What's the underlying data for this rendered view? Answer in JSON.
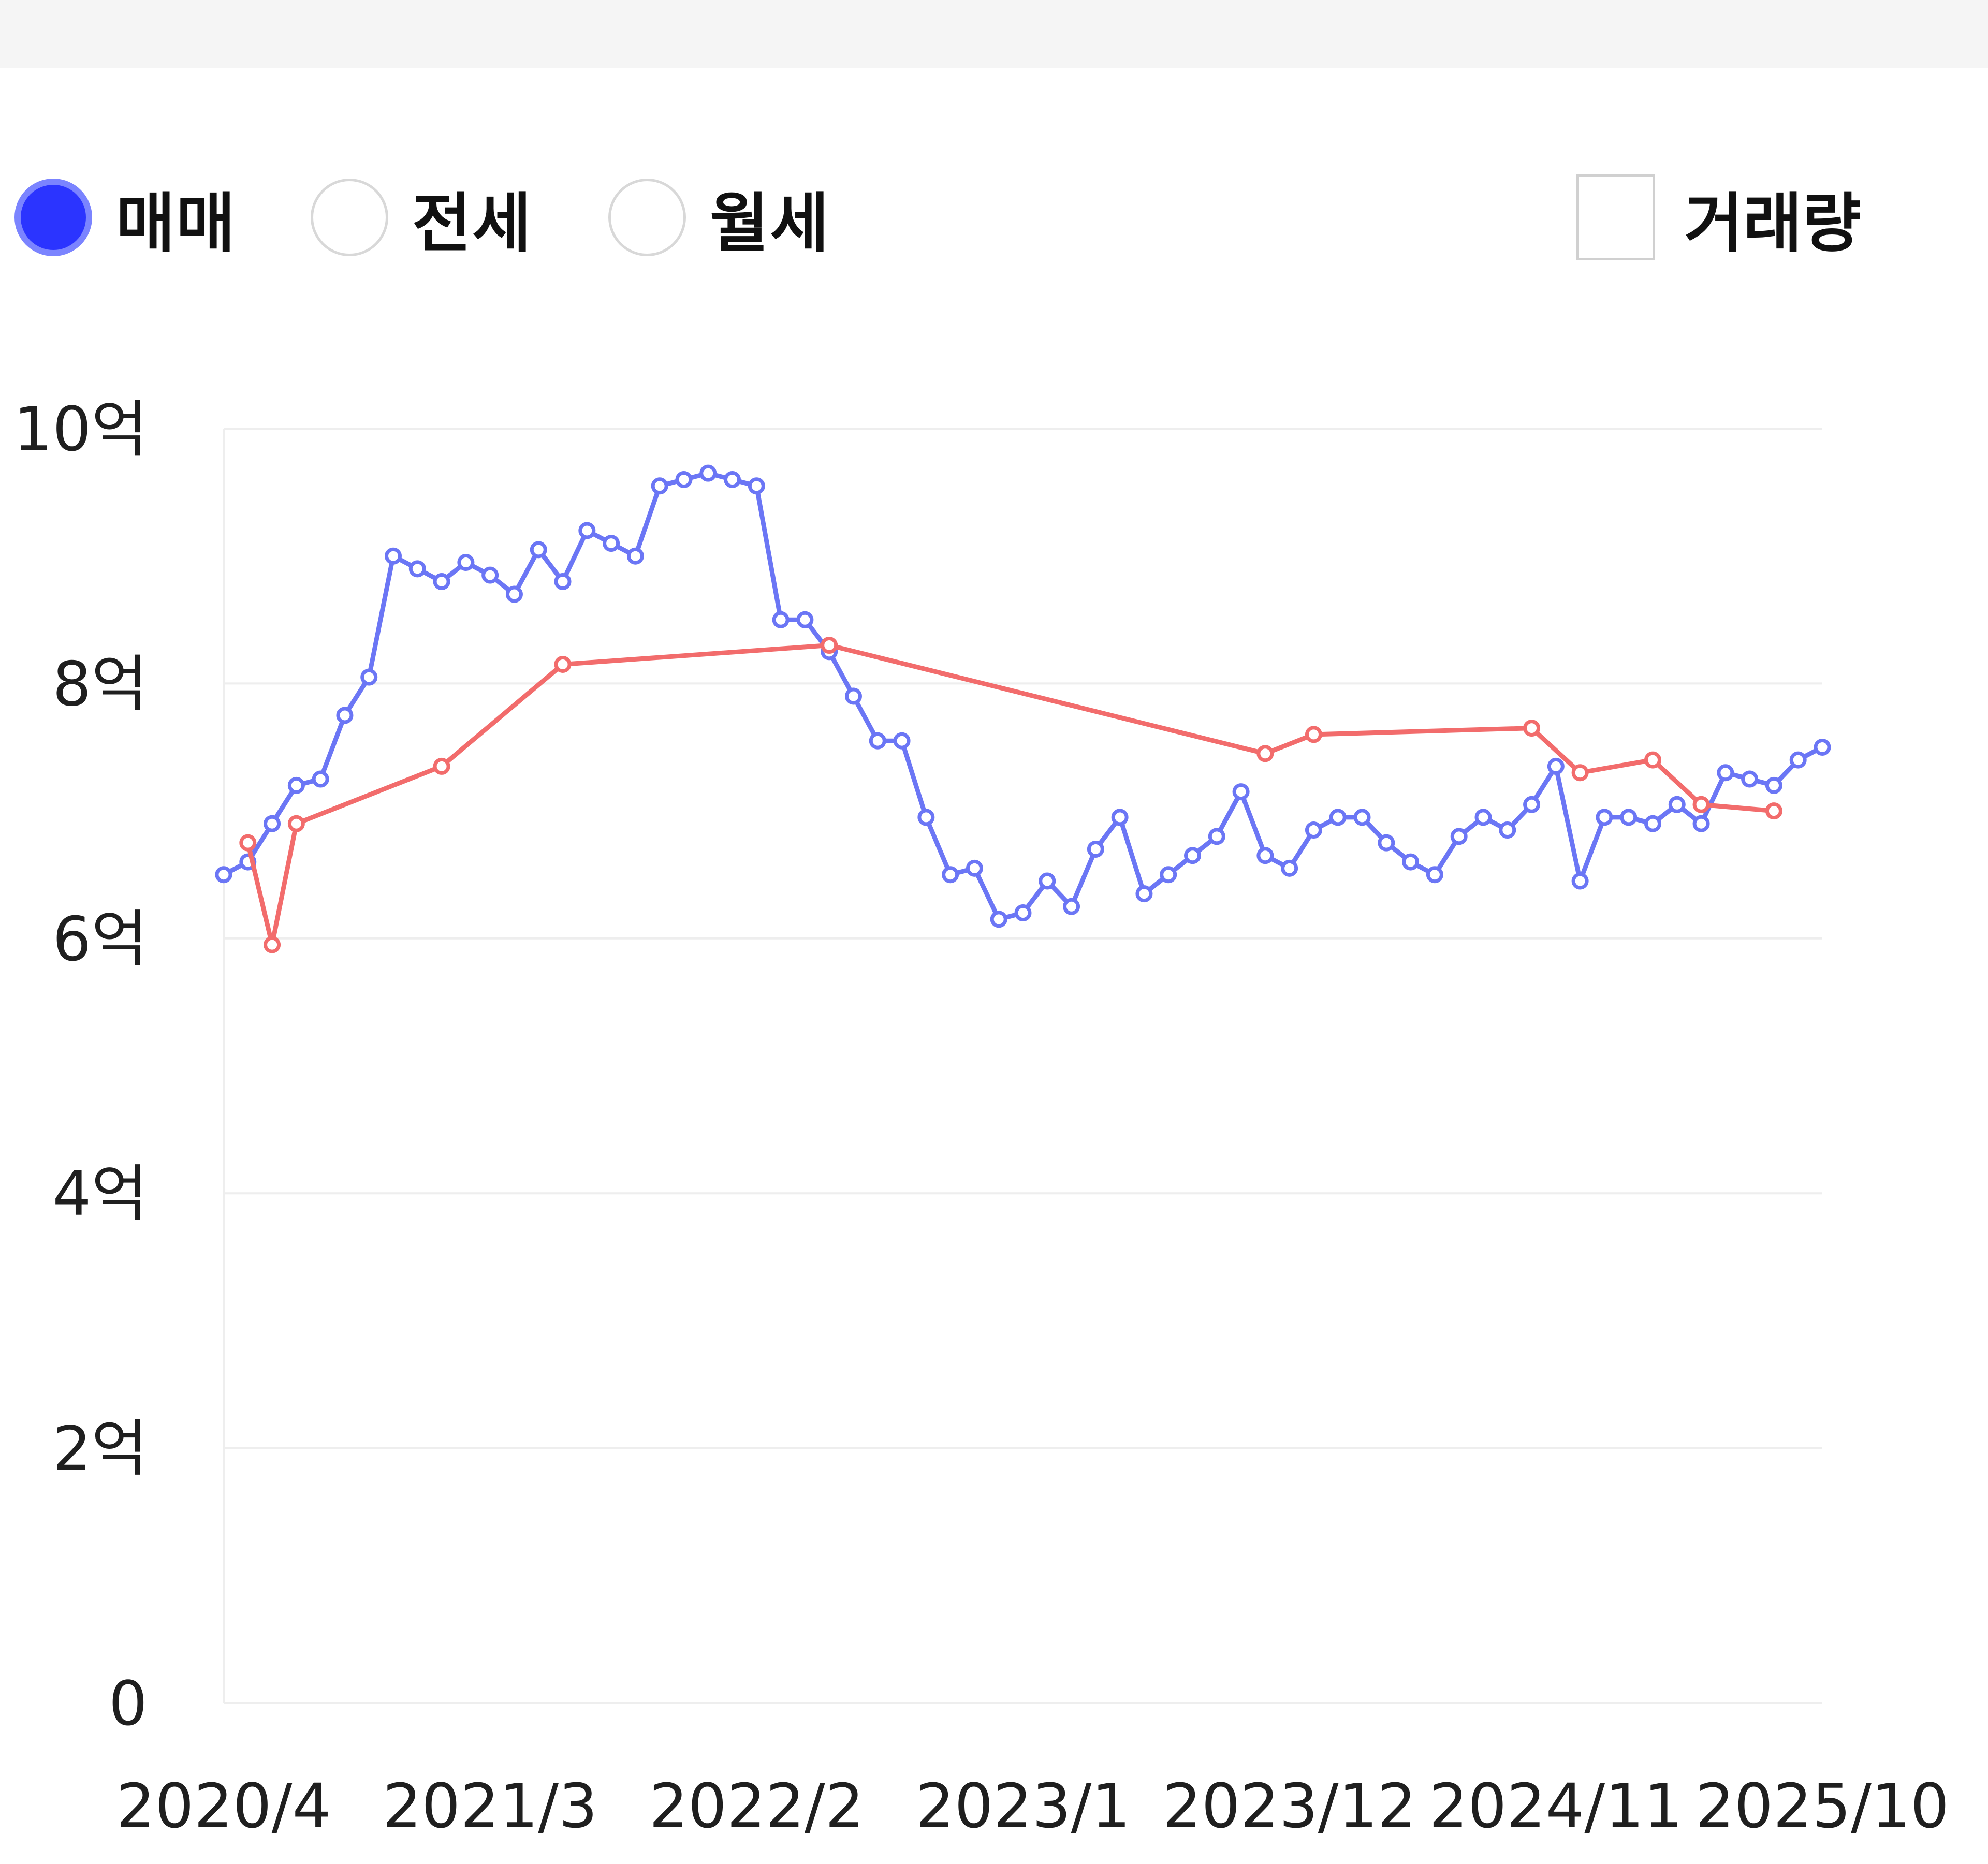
{
  "controls": {
    "radios": [
      {
        "label": "매매",
        "checked": true
      },
      {
        "label": "전세",
        "checked": false
      },
      {
        "label": "월세",
        "checked": false
      }
    ],
    "volume_checkbox": {
      "label": "거래량",
      "checked": false
    }
  },
  "colors": {
    "sale": "#6b76f5",
    "lease": "#f26c6c",
    "grid": "#eeeeee",
    "radio_selected": "#2b34ff"
  },
  "chart_data": {
    "type": "line",
    "y_unit": "억",
    "ylim": [
      0,
      10
    ],
    "y_ticks": [
      {
        "value": 0,
        "label": "0"
      },
      {
        "value": 2,
        "label": "2억"
      },
      {
        "value": 4,
        "label": "4억"
      },
      {
        "value": 6,
        "label": "6억"
      },
      {
        "value": 8,
        "label": "8억"
      },
      {
        "value": 10,
        "label": "10억"
      }
    ],
    "xlim": [
      "2020-04",
      "2025-10"
    ],
    "x_ticks": [
      {
        "value": "2020-04",
        "label": "2020/4"
      },
      {
        "value": "2021-03",
        "label": "2021/3"
      },
      {
        "value": "2022-02",
        "label": "2022/2"
      },
      {
        "value": "2023-01",
        "label": "2023/1"
      },
      {
        "value": "2023-12",
        "label": "2023/12"
      },
      {
        "value": "2024-11",
        "label": "2024/11"
      },
      {
        "value": "2025-10",
        "label": "2025/10"
      }
    ],
    "grid": true,
    "legend": "none",
    "series": [
      {
        "color": "#6b76f5",
        "points": [
          [
            "2020-04",
            6.5
          ],
          [
            "2020-05",
            6.6
          ],
          [
            "2020-06",
            6.9
          ],
          [
            "2020-07",
            7.2
          ],
          [
            "2020-08",
            7.25
          ],
          [
            "2020-09",
            7.75
          ],
          [
            "2020-10",
            8.05
          ],
          [
            "2020-11",
            9.0
          ],
          [
            "2020-12",
            8.9
          ],
          [
            "2021-01",
            8.8
          ],
          [
            "2021-02",
            8.95
          ],
          [
            "2021-03",
            8.85
          ],
          [
            "2021-04",
            8.7
          ],
          [
            "2021-05",
            9.05
          ],
          [
            "2021-06",
            8.8
          ],
          [
            "2021-07",
            9.2
          ],
          [
            "2021-08",
            9.1
          ],
          [
            "2021-09",
            9.0
          ],
          [
            "2021-10",
            9.55
          ],
          [
            "2021-11",
            9.6
          ],
          [
            "2021-12",
            9.65
          ],
          [
            "2022-01",
            9.6
          ],
          [
            "2022-02",
            9.55
          ],
          [
            "2022-03",
            8.5
          ],
          [
            "2022-04",
            8.5
          ],
          [
            "2022-05",
            8.25
          ],
          [
            "2022-06",
            7.9
          ],
          [
            "2022-07",
            7.55
          ],
          [
            "2022-08",
            7.55
          ],
          [
            "2022-09",
            6.95
          ],
          [
            "2022-10",
            6.5
          ],
          [
            "2022-11",
            6.55
          ],
          [
            "2022-12",
            6.15
          ],
          [
            "2023-01",
            6.2
          ],
          [
            "2023-02",
            6.45
          ],
          [
            "2023-03",
            6.25
          ],
          [
            "2023-04",
            6.7
          ],
          [
            "2023-05",
            6.95
          ],
          [
            "2023-06",
            6.35
          ],
          [
            "2023-07",
            6.5
          ],
          [
            "2023-08",
            6.65
          ],
          [
            "2023-09",
            6.8
          ],
          [
            "2023-10",
            7.15
          ],
          [
            "2023-11",
            6.65
          ],
          [
            "2023-12",
            6.55
          ],
          [
            "2024-01",
            6.85
          ],
          [
            "2024-02",
            6.95
          ],
          [
            "2024-03",
            6.95
          ],
          [
            "2024-04",
            6.75
          ],
          [
            "2024-05",
            6.6
          ],
          [
            "2024-06",
            6.5
          ],
          [
            "2024-07",
            6.8
          ],
          [
            "2024-08",
            6.95
          ],
          [
            "2024-09",
            6.85
          ],
          [
            "2024-10",
            7.05
          ],
          [
            "2024-11",
            7.35
          ],
          [
            "2024-12",
            6.45
          ],
          [
            "2025-01",
            6.95
          ],
          [
            "2025-02",
            6.95
          ],
          [
            "2025-03",
            6.9
          ],
          [
            "2025-04",
            7.05
          ],
          [
            "2025-05",
            6.9
          ],
          [
            "2025-06",
            7.3
          ],
          [
            "2025-07",
            7.25
          ],
          [
            "2025-08",
            7.2
          ],
          [
            "2025-09",
            7.4
          ],
          [
            "2025-10",
            7.5
          ]
        ]
      },
      {
        "color": "#f26c6c",
        "points": [
          [
            "2020-05",
            6.75
          ],
          [
            "2020-06",
            5.95
          ],
          [
            "2020-07",
            6.9
          ],
          [
            "2021-01",
            7.35
          ],
          [
            "2021-06",
            8.15
          ],
          [
            "2022-05",
            8.3
          ],
          [
            "2023-11",
            7.45
          ],
          [
            "2024-01",
            7.6
          ],
          [
            "2024-10",
            7.65
          ],
          [
            "2024-12",
            7.3
          ],
          [
            "2025-03",
            7.4
          ],
          [
            "2025-05",
            7.05
          ],
          [
            "2025-08",
            7.0
          ]
        ]
      }
    ]
  }
}
